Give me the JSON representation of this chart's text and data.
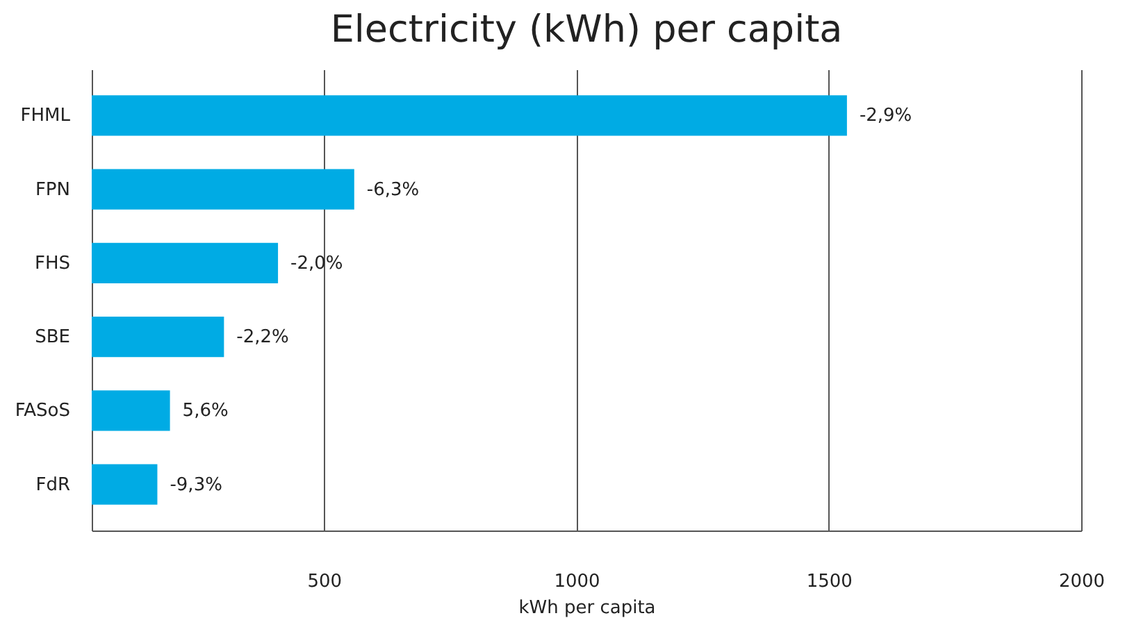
{
  "chart_data": {
    "type": "bar",
    "orientation": "horizontal",
    "title": "Electricity  (kWh) per capita",
    "xlabel": "kWh per capita",
    "categories": [
      "FHML",
      "FPN",
      "FHS",
      "SBE",
      "FASoS",
      "FdR"
    ],
    "values": [
      1536,
      560,
      409,
      302,
      195,
      170
    ],
    "annotations": [
      {
        "text": "-2,9%",
        "x": 1536,
        "y": "FHML"
      },
      {
        "text": "-6,3%",
        "x": 560,
        "y": "FPN"
      },
      {
        "text": "-2,0%",
        "x": 409,
        "y": "FHS"
      },
      {
        "text": "-2,2%",
        "x": 302,
        "y": "SBE"
      },
      {
        "text": "5,6%",
        "x": 195,
        "y": "FASoS"
      },
      {
        "text": "-9,3%",
        "x": 170,
        "y": "FdR"
      }
    ],
    "color": "#00abe4",
    "xlim": [
      40,
      2000
    ],
    "xticks": [
      500,
      1000,
      1500,
      2000
    ],
    "grid": "x"
  }
}
